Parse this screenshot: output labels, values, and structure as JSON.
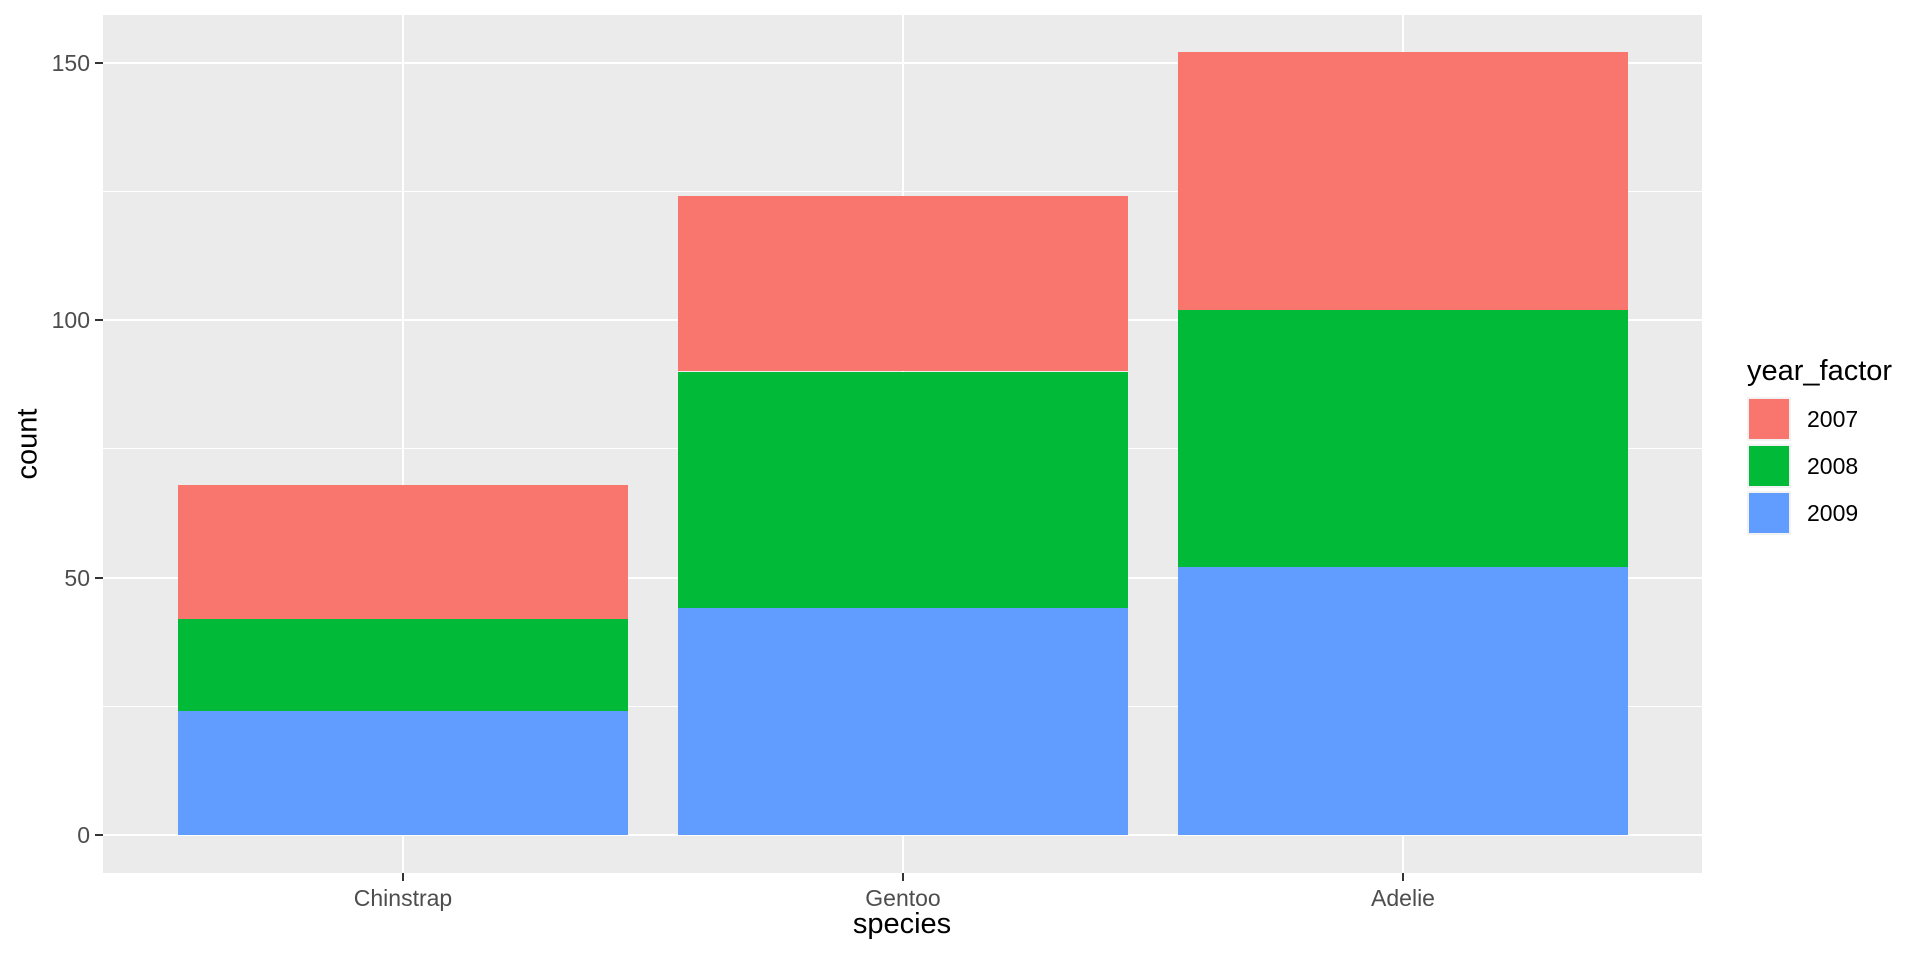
{
  "chart_data": {
    "type": "bar",
    "stacked": true,
    "title": "",
    "xlabel": "species",
    "ylabel": "count",
    "legend_title": "year_factor",
    "legend_position": "right",
    "categories": [
      "Chinstrap",
      "Gentoo",
      "Adelie"
    ],
    "series": [
      {
        "name": "2007",
        "color": "#F8766D",
        "values": [
          26,
          34,
          50
        ]
      },
      {
        "name": "2008",
        "color": "#00BA38",
        "values": [
          18,
          46,
          50
        ]
      },
      {
        "name": "2009",
        "color": "#619CFF",
        "values": [
          24,
          44,
          52
        ]
      }
    ],
    "stack_order_bottom_to_top": [
      "2009",
      "2008",
      "2007"
    ],
    "stack_totals": [
      68,
      124,
      152
    ],
    "y_ticks": [
      0,
      50,
      100,
      150
    ],
    "y_minor_ticks": [
      25,
      75,
      125
    ],
    "ylim": [
      -8,
      160
    ],
    "grid": true
  },
  "style": {
    "panel_bg": "#EBEBEB",
    "grid_color": "#FFFFFF",
    "tick_mark_color": "#333333",
    "tick_label_color": "#4D4D4D",
    "axis_title_color": "#000000",
    "legend_key_bg": "#F2F2F2",
    "figure_bg": "#FFFFFF"
  }
}
